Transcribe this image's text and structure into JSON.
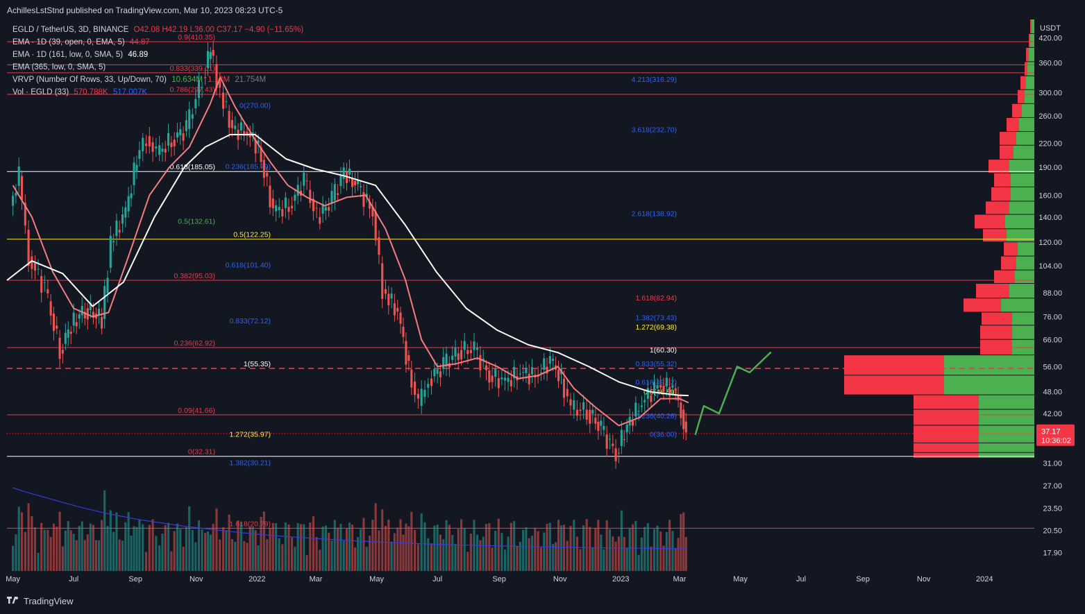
{
  "header": {
    "published": "AchillesLstStnd published on TradingView.com, Mar 10, 2023 08:23 UTC-5"
  },
  "legend": {
    "symbol": "EGLD / TetherUS, 3D, BINANCE",
    "ohlc": "O42.08  H42.19  L36.00  C37.17  −4.90 (−11.65%)",
    "ema1_label": "EMA · 1D (39, open, 0, EMA, 5)",
    "ema1_value": "44.87",
    "ema2_label": "EMA · 1D (161, low, 0, SMA, 5)",
    "ema2_value": "46.89",
    "ema3_label": "EMA (365, low, 0, SMA, 5)",
    "vrvp_label": "VRVP (Number Of Rows, 33, Up/Down, 70)",
    "vrvp_v1": "10.634M",
    "vrvp_v2": "1.12M",
    "vrvp_v3": "21.754M",
    "vol_label": "Vol · EGLD (33)",
    "vol_v1": "570.788K",
    "vol_v2": "517.007K"
  },
  "axis": {
    "currency": "USDT",
    "price_ticks": [
      "420.00",
      "360.00",
      "300.00",
      "260.00",
      "220.00",
      "190.00",
      "160.00",
      "140.00",
      "120.00",
      "104.00",
      "88.00",
      "76.00",
      "66.00",
      "56.00",
      "48.00",
      "42.00",
      "31.00",
      "27.00",
      "23.50",
      "20.50",
      "17.90"
    ],
    "time_ticks": [
      "May",
      "Jul",
      "Sep",
      "Nov",
      "2022",
      "Mar",
      "May",
      "Jul",
      "Sep",
      "Nov",
      "2023",
      "Mar",
      "May",
      "Jul",
      "Sep",
      "Nov",
      "2024"
    ],
    "last_price": "37.17",
    "countdown": "10:36:02"
  },
  "footer": {
    "brand": "TradingView"
  },
  "colors": {
    "background": "#131722",
    "up": "#26a69a",
    "down": "#ef5350",
    "ema_pink": "#f77c80",
    "ema_white": "#ffffff",
    "vol_ma": "#3a3adf",
    "fib_red": "#f23645",
    "fib_blue": "#2962ff",
    "fib_white": "#ffffff",
    "fib_yellow": "#ffeb3b",
    "fib_green": "#4caf50",
    "projection": "#4caf50"
  },
  "chart_data": {
    "type": "candlestick",
    "symbol": "EGLD / TetherUS",
    "interval": "3D",
    "exchange": "BINANCE",
    "log_scale": true,
    "ylim": [
      16,
      470
    ],
    "x_range": [
      "2021-04-25",
      "2024-02-20"
    ],
    "close_path": [
      [
        "2021-05-01",
        150
      ],
      [
        "2021-05-10",
        180
      ],
      [
        "2021-05-20",
        110
      ],
      [
        "2021-06-05",
        90
      ],
      [
        "2021-06-20",
        62
      ],
      [
        "2021-07-01",
        72
      ],
      [
        "2021-07-15",
        80
      ],
      [
        "2021-08-01",
        75
      ],
      [
        "2021-08-10",
        120
      ],
      [
        "2021-08-25",
        145
      ],
      [
        "2021-09-05",
        200
      ],
      [
        "2021-09-15",
        230
      ],
      [
        "2021-09-25",
        205
      ],
      [
        "2021-10-10",
        225
      ],
      [
        "2021-10-25",
        240
      ],
      [
        "2021-11-10",
        330
      ],
      [
        "2021-11-18",
        390
      ],
      [
        "2021-11-28",
        300
      ],
      [
        "2021-12-10",
        240
      ],
      [
        "2021-12-25",
        235
      ],
      [
        "2022-01-05",
        215
      ],
      [
        "2022-01-20",
        145
      ],
      [
        "2022-02-05",
        150
      ],
      [
        "2022-02-20",
        175
      ],
      [
        "2022-03-05",
        140
      ],
      [
        "2022-03-20",
        155
      ],
      [
        "2022-04-01",
        185
      ],
      [
        "2022-04-15",
        168
      ],
      [
        "2022-04-30",
        145
      ],
      [
        "2022-05-10",
        90
      ],
      [
        "2022-05-25",
        78
      ],
      [
        "2022-06-05",
        55
      ],
      [
        "2022-06-15",
        44
      ],
      [
        "2022-06-25",
        52
      ],
      [
        "2022-07-10",
        56
      ],
      [
        "2022-07-25",
        62
      ],
      [
        "2022-08-10",
        62
      ],
      [
        "2022-08-25",
        53
      ],
      [
        "2022-09-10",
        51
      ],
      [
        "2022-09-25",
        54
      ],
      [
        "2022-10-10",
        53
      ],
      [
        "2022-10-25",
        58
      ],
      [
        "2022-11-05",
        52
      ],
      [
        "2022-11-15",
        43
      ],
      [
        "2022-12-01",
        43
      ],
      [
        "2022-12-15",
        38
      ],
      [
        "2022-12-30",
        33
      ],
      [
        "2023-01-10",
        39
      ],
      [
        "2023-01-25",
        45
      ],
      [
        "2023-02-10",
        50
      ],
      [
        "2023-02-25",
        49
      ],
      [
        "2023-03-05",
        43
      ],
      [
        "2023-03-10",
        37.17
      ]
    ],
    "ema_39_open": [
      [
        "2021-05-01",
        170
      ],
      [
        "2021-05-20",
        140
      ],
      [
        "2021-06-10",
        100
      ],
      [
        "2021-07-01",
        80
      ],
      [
        "2021-07-20",
        76
      ],
      [
        "2021-08-05",
        78
      ],
      [
        "2021-08-25",
        110
      ],
      [
        "2021-09-15",
        160
      ],
      [
        "2021-10-05",
        190
      ],
      [
        "2021-10-25",
        215
      ],
      [
        "2021-11-15",
        280
      ],
      [
        "2021-11-25",
        330
      ],
      [
        "2021-12-10",
        275
      ],
      [
        "2021-12-30",
        225
      ],
      [
        "2022-01-15",
        195
      ],
      [
        "2022-02-01",
        170
      ],
      [
        "2022-02-20",
        158
      ],
      [
        "2022-03-10",
        150
      ],
      [
        "2022-04-01",
        158
      ],
      [
        "2022-04-20",
        160
      ],
      [
        "2022-05-10",
        130
      ],
      [
        "2022-05-30",
        95
      ],
      [
        "2022-06-15",
        66
      ],
      [
        "2022-07-01",
        56
      ],
      [
        "2022-07-20",
        57
      ],
      [
        "2022-08-10",
        59
      ],
      [
        "2022-08-30",
        56
      ],
      [
        "2022-09-20",
        52
      ],
      [
        "2022-10-10",
        53
      ],
      [
        "2022-10-30",
        56
      ],
      [
        "2022-11-15",
        49
      ],
      [
        "2022-12-05",
        44
      ],
      [
        "2022-12-30",
        39
      ],
      [
        "2023-01-20",
        41
      ],
      [
        "2023-02-10",
        46
      ],
      [
        "2023-03-01",
        46
      ],
      [
        "2023-03-10",
        44.87
      ]
    ],
    "ema_161_low": [
      [
        "2021-04-25",
        95
      ],
      [
        "2021-05-20",
        107
      ],
      [
        "2021-06-20",
        99
      ],
      [
        "2021-07-20",
        81
      ],
      [
        "2021-08-20",
        94
      ],
      [
        "2021-09-20",
        140
      ],
      [
        "2021-10-20",
        190
      ],
      [
        "2021-11-10",
        215
      ],
      [
        "2021-12-05",
        232
      ],
      [
        "2021-12-30",
        232
      ],
      [
        "2022-01-30",
        200
      ],
      [
        "2022-02-28",
        188
      ],
      [
        "2022-03-30",
        180
      ],
      [
        "2022-04-30",
        170
      ],
      [
        "2022-05-30",
        133
      ],
      [
        "2022-06-30",
        100
      ],
      [
        "2022-07-30",
        80
      ],
      [
        "2022-08-30",
        70
      ],
      [
        "2022-09-30",
        64
      ],
      [
        "2022-10-30",
        61
      ],
      [
        "2022-11-30",
        56
      ],
      [
        "2022-12-30",
        51
      ],
      [
        "2023-01-30",
        48
      ],
      [
        "2023-02-28",
        47
      ],
      [
        "2023-03-10",
        46.89
      ]
    ],
    "projection_path": [
      [
        37.0,
        "start"
      ],
      [
        44,
        "dip"
      ],
      [
        42,
        "low"
      ],
      [
        56,
        "up"
      ],
      [
        54,
        "dip"
      ],
      [
        61,
        "target"
      ]
    ],
    "horizontal_levels": [
      {
        "price": 410,
        "color": "red"
      },
      {
        "price": 356,
        "color": "red"
      },
      {
        "price": 339,
        "color": "red"
      },
      {
        "price": 297,
        "color": "red"
      },
      {
        "price": 185.05,
        "color": "white"
      },
      {
        "price": 122.25,
        "color": "yellow"
      },
      {
        "price": 95.03,
        "color": "red"
      },
      {
        "price": 62.92,
        "color": "red"
      },
      {
        "price": 55.35,
        "color": "red-dashed"
      },
      {
        "price": 41.66,
        "color": "red"
      },
      {
        "price": 32.31,
        "color": "white"
      },
      {
        "price": 20.79,
        "color": "red"
      }
    ],
    "fib_labels": [
      {
        "text": "0.9(410.35)",
        "price": 410.35,
        "color": "red"
      },
      {
        "text": "0.833(339.01)",
        "price": 339.01,
        "color": "red"
      },
      {
        "text": "0.786(297.43)",
        "price": 297.43,
        "color": "red"
      },
      {
        "text": "0(270.00)",
        "price": 270,
        "color": "blue"
      },
      {
        "text": "0.618(185.05)",
        "price": 185.05,
        "color": "white"
      },
      {
        "text": "0.236(185.79)",
        "price": 185.79,
        "color": "blue"
      },
      {
        "text": "0.5(132.61)",
        "price": 132.61,
        "color": "green"
      },
      {
        "text": "0.5(122.25)",
        "price": 122.25,
        "color": "yellow"
      },
      {
        "text": "0.618(101.40)",
        "price": 101.4,
        "color": "blue"
      },
      {
        "text": "0.382(95.03)",
        "price": 95.03,
        "color": "red"
      },
      {
        "text": "0.833(72.12)",
        "price": 72.12,
        "color": "blue"
      },
      {
        "text": "0.236(62.92)",
        "price": 62.92,
        "color": "red"
      },
      {
        "text": "1(55.35)",
        "price": 55.35,
        "color": "white"
      },
      {
        "text": "0.09(41.66)",
        "price": 41.66,
        "color": "red"
      },
      {
        "text": "1.272(35.97)",
        "price": 35.97,
        "color": "yellow"
      },
      {
        "text": "0(32.31)",
        "price": 32.31,
        "color": "red"
      },
      {
        "text": "1.382(30.21)",
        "price": 30.21,
        "color": "blue"
      },
      {
        "text": "1.618(20.79)",
        "price": 20.79,
        "color": "red"
      },
      {
        "text": "4.213(316.29)",
        "price": 316.29,
        "color": "blue"
      },
      {
        "text": "3.618(232.70)",
        "price": 232.7,
        "color": "blue"
      },
      {
        "text": "2.618(138.92)",
        "price": 138.92,
        "color": "blue"
      },
      {
        "text": "1.618(82.94)",
        "price": 82.94,
        "color": "red"
      },
      {
        "text": "1.382(73.43)",
        "price": 73.43,
        "color": "blue"
      },
      {
        "text": "1.272(69.38)",
        "price": 69.38,
        "color": "yellow"
      },
      {
        "text": "1(60.30)",
        "price": 60.3,
        "color": "white"
      },
      {
        "text": "0.833(55.32)",
        "price": 55.32,
        "color": "blue"
      },
      {
        "text": "0.618(49.52)",
        "price": 49.52,
        "color": "blue"
      },
      {
        "text": "0.5(46.59)",
        "price": 46.59,
        "color": "yellow"
      },
      {
        "text": "0.236(40.26)",
        "price": 40.26,
        "color": "blue"
      },
      {
        "text": "0(36.00)",
        "price": 36.0,
        "color": "blue"
      }
    ],
    "volume_profile": [
      {
        "price": 470,
        "up": 0.02,
        "down": 0.01
      },
      {
        "price": 430,
        "up": 0.03,
        "down": 0.01
      },
      {
        "price": 395,
        "up": 0.04,
        "down": 0.02
      },
      {
        "price": 362,
        "up": 0.05,
        "down": 0.02
      },
      {
        "price": 332,
        "up": 0.06,
        "down": 0.04
      },
      {
        "price": 305,
        "up": 0.07,
        "down": 0.05
      },
      {
        "price": 280,
        "up": 0.09,
        "down": 0.07
      },
      {
        "price": 257,
        "up": 0.11,
        "down": 0.09
      },
      {
        "price": 236,
        "up": 0.13,
        "down": 0.12
      },
      {
        "price": 217,
        "up": 0.15,
        "down": 0.1
      },
      {
        "price": 199,
        "up": 0.18,
        "down": 0.15
      },
      {
        "price": 183,
        "up": 0.17,
        "down": 0.12
      },
      {
        "price": 168,
        "up": 0.17,
        "down": 0.14
      },
      {
        "price": 154,
        "up": 0.18,
        "down": 0.17
      },
      {
        "price": 142,
        "up": 0.21,
        "down": 0.22
      },
      {
        "price": 130,
        "up": 0.2,
        "down": 0.17
      },
      {
        "price": 120,
        "up": 0.12,
        "down": 0.1
      },
      {
        "price": 110,
        "up": 0.13,
        "down": 0.11
      },
      {
        "price": 101,
        "up": 0.14,
        "down": 0.15
      },
      {
        "price": 93,
        "up": 0.18,
        "down": 0.24
      },
      {
        "price": 85,
        "up": 0.24,
        "down": 0.27
      },
      {
        "price": 78,
        "up": 0.16,
        "down": 0.22
      },
      {
        "price": 72,
        "up": 0.16,
        "down": 0.23
      },
      {
        "price": 66,
        "up": 0.16,
        "down": 0.23
      },
      {
        "price": 60,
        "up": 0.65,
        "down": 0.72
      },
      {
        "price": 53,
        "up": 0.65,
        "down": 0.72
      },
      {
        "price": 47,
        "up": 0.4,
        "down": 0.47
      },
      {
        "price": 43,
        "up": 0.4,
        "down": 0.47
      },
      {
        "price": 39,
        "up": 0.4,
        "down": 0.47
      },
      {
        "price": 35,
        "up": 0.4,
        "down": 0.47
      },
      {
        "price": 33,
        "up": 0.4,
        "down": 0.47
      }
    ]
  }
}
